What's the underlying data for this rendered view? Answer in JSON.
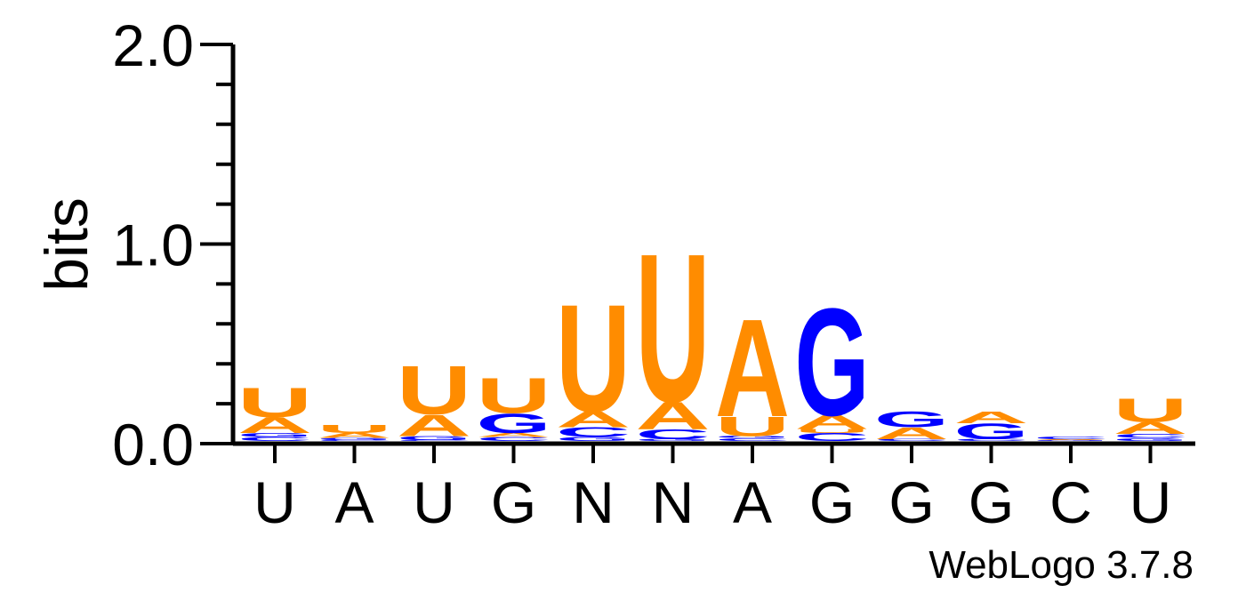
{
  "chart_data": {
    "type": "sequence-logo",
    "ylabel": "bits",
    "ylim": [
      0,
      2.0
    ],
    "yticks": [
      "0.0",
      "1.0",
      "2.0"
    ],
    "colors": {
      "A": "#ff8c00",
      "U": "#ff8c00",
      "G": "#0000ff",
      "C": "#0000ff"
    },
    "positions": [
      {
        "label": "U",
        "stack": [
          {
            "letter": "C",
            "bits": 0.02
          },
          {
            "letter": "G",
            "bits": 0.02
          },
          {
            "letter": "A",
            "bits": 0.08
          },
          {
            "letter": "U",
            "bits": 0.15
          }
        ]
      },
      {
        "label": "A",
        "stack": [
          {
            "letter": "C",
            "bits": 0.005
          },
          {
            "letter": "G",
            "bits": 0.01
          },
          {
            "letter": "A",
            "bits": 0.025
          },
          {
            "letter": "U",
            "bits": 0.04
          }
        ]
      },
      {
        "label": "U",
        "stack": [
          {
            "letter": "C",
            "bits": 0.005
          },
          {
            "letter": "G",
            "bits": 0.02
          },
          {
            "letter": "A",
            "bits": 0.11
          },
          {
            "letter": "U",
            "bits": 0.25
          }
        ]
      },
      {
        "label": "G",
        "stack": [
          {
            "letter": "C",
            "bits": 0.02
          },
          {
            "letter": "A",
            "bits": 0.02
          },
          {
            "letter": "G",
            "bits": 0.1
          },
          {
            "letter": "U",
            "bits": 0.18
          }
        ]
      },
      {
        "label": "N",
        "stack": [
          {
            "letter": "G",
            "bits": 0.02
          },
          {
            "letter": "C",
            "bits": 0.05
          },
          {
            "letter": "A",
            "bits": 0.08
          },
          {
            "letter": "U",
            "bits": 0.55
          }
        ]
      },
      {
        "label": "N",
        "stack": [
          {
            "letter": "G",
            "bits": 0.01
          },
          {
            "letter": "C",
            "bits": 0.05
          },
          {
            "letter": "A",
            "bits": 0.14
          },
          {
            "letter": "U",
            "bits": 0.76
          }
        ]
      },
      {
        "label": "A",
        "stack": [
          {
            "letter": "C",
            "bits": 0.015
          },
          {
            "letter": "G",
            "bits": 0.01
          },
          {
            "letter": "U",
            "bits": 0.1
          },
          {
            "letter": "A",
            "bits": 0.5
          }
        ]
      },
      {
        "label": "G",
        "stack": [
          {
            "letter": "C",
            "bits": 0.04
          },
          {
            "letter": "U",
            "bits": 0.02
          },
          {
            "letter": "A",
            "bits": 0.07
          },
          {
            "letter": "G",
            "bits": 0.55
          }
        ]
      },
      {
        "label": "G",
        "stack": [
          {
            "letter": "C",
            "bits": 0.01
          },
          {
            "letter": "A",
            "bits": 0.06
          },
          {
            "letter": "G",
            "bits": 0.08
          }
        ]
      },
      {
        "label": "G",
        "stack": [
          {
            "letter": "C",
            "bits": 0.01
          },
          {
            "letter": "G",
            "bits": 0.08
          },
          {
            "letter": "A",
            "bits": 0.06
          }
        ]
      },
      {
        "label": "C",
        "stack": [
          {
            "letter": "G",
            "bits": 0.005
          },
          {
            "letter": "A",
            "bits": 0.005
          },
          {
            "letter": "C",
            "bits": 0.015
          }
        ]
      },
      {
        "label": "U",
        "stack": [
          {
            "letter": "G",
            "bits": 0.015
          },
          {
            "letter": "C",
            "bits": 0.02
          },
          {
            "letter": "A",
            "bits": 0.06
          },
          {
            "letter": "U",
            "bits": 0.12
          }
        ]
      }
    ]
  },
  "footer": {
    "credit": "WebLogo 3.7.8"
  }
}
